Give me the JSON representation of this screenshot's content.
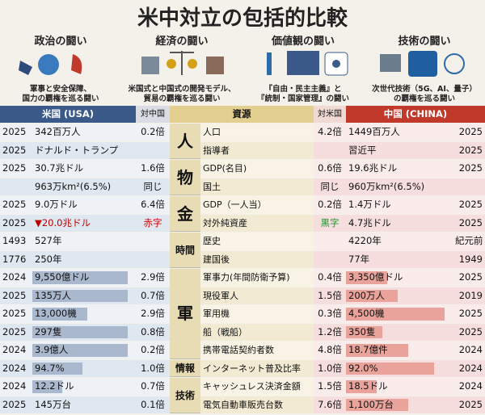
{
  "title": "米中対立の包括的比較",
  "sections": [
    {
      "heading": "政治の闘い",
      "caption": [
        "軍事と安全保障、",
        "国力の覇権を巡る闘い"
      ]
    },
    {
      "heading": "経済の闘い",
      "caption": [
        "米国式と中国式の開発モデル、",
        "貿易の覇権を巡る闘い"
      ]
    },
    {
      "heading": "価値観の闘い",
      "caption": [
        "『自由・民主主義』と",
        "『統制・国家管理』の闘い"
      ]
    },
    {
      "heading": "技術の闘い",
      "caption": [
        "次世代技術（5G、AI、量子）",
        "の覇権を巡る闘い"
      ]
    }
  ],
  "table": {
    "header": {
      "usa": "米国 (USA)",
      "vs_china": "対中国",
      "resource": "資源",
      "vs_usa": "対米国",
      "china": "中国 (CHINA)"
    },
    "groups": [
      {
        "label": "人",
        "rows": [
          {
            "us_year": "2025",
            "us_value": "342百万人",
            "us_ratio": "0.2倍",
            "item": "人口",
            "cn_ratio": "4.2倍",
            "cn_value": "1449百万人",
            "cn_year": "2025"
          },
          {
            "us_year": "2025",
            "us_value": "ドナルド・トランプ",
            "item": "指導者",
            "cn_value": "習近平",
            "cn_year": "2025"
          }
        ]
      },
      {
        "label": "物",
        "rows": [
          {
            "us_year": "2025",
            "us_value": "30.7兆ドル",
            "us_ratio": "1.6倍",
            "item": "GDP(名目)",
            "cn_ratio": "0.6倍",
            "cn_value": "19.6兆ドル",
            "cn_year": "2025"
          },
          {
            "us_value": "963万km²(6.5%)",
            "us_ratio": "同じ",
            "item": "国土",
            "cn_ratio": "同じ",
            "cn_value": "960万km²(6.5%)"
          }
        ]
      },
      {
        "label": "金",
        "rows": [
          {
            "us_year": "2025",
            "us_value": "9.0万ドル",
            "us_ratio": "6.4倍",
            "item": "GDP（一人当）",
            "cn_ratio": "0.2倍",
            "cn_value": "1.4万ドル",
            "cn_year": "2025"
          },
          {
            "us_year": "2025",
            "us_value": "▼20.0兆ドル",
            "us_ratio": "赤字",
            "item": "対外純資産",
            "cn_ratio": "黒字",
            "cn_value": "4.7兆ドル",
            "cn_year": "2025"
          }
        ]
      },
      {
        "label": "時間",
        "rows": [
          {
            "us_year": "1493",
            "us_value": "527年",
            "item": "歴史",
            "cn_value": "4220年",
            "cn_year": "紀元前"
          },
          {
            "us_year": "1776",
            "us_value": "250年",
            "item": "建国後",
            "cn_value": "77年",
            "cn_year": "1949"
          }
        ]
      },
      {
        "label": "軍",
        "rows": [
          {
            "us_year": "2024",
            "us_value": "9,550億ドル",
            "us_ratio": "2.9倍",
            "item": "軍事力(年間防衛予算)",
            "cn_ratio": "0.4倍",
            "cn_value": "3,350億ドル",
            "cn_year": "2025"
          },
          {
            "us_year": "2025",
            "us_value": "135万人",
            "us_ratio": "0.7倍",
            "item": "現役軍人",
            "cn_ratio": "1.5倍",
            "cn_value": "200万人",
            "cn_year": "2019"
          },
          {
            "us_year": "2025",
            "us_value": "13,000機",
            "us_ratio": "2.9倍",
            "item": "軍用機",
            "cn_ratio": "0.3倍",
            "cn_value": "4,500機",
            "cn_year": "2025"
          },
          {
            "us_year": "2025",
            "us_value": "297隻",
            "us_ratio": "0.8倍",
            "item": "船（戦船）",
            "cn_ratio": "1.2倍",
            "cn_value": "350隻",
            "cn_year": "2025"
          },
          {
            "us_year": "2024",
            "us_value": "3.9億人",
            "us_ratio": "0.2倍",
            "item": "携帯電話契約者数",
            "cn_ratio": "4.8倍",
            "cn_value": "18.7億件",
            "cn_year": "2024"
          }
        ]
      },
      {
        "label": "情報",
        "rows": [
          {
            "us_year": "2024",
            "us_value": "94.7%",
            "us_ratio": "1.0倍",
            "item": "インターネット普及比率",
            "cn_ratio": "1.0倍",
            "cn_value": "92.0%",
            "cn_year": "2024"
          }
        ]
      },
      {
        "label": "技術",
        "rows": [
          {
            "us_year": "2024",
            "us_value": "12.2ドル",
            "us_ratio": "0.7倍",
            "item": "キャッシュレス決済金額",
            "cn_ratio": "1.5倍",
            "cn_value": "18.5ドル",
            "cn_year": "2024"
          },
          {
            "us_year": "2025",
            "us_value": "145万台",
            "us_ratio": "0.1倍",
            "item": "電気自動車販売台数",
            "cn_ratio": "7.6倍",
            "cn_value": "1,100万台",
            "cn_year": "2025"
          }
        ]
      }
    ]
  }
}
